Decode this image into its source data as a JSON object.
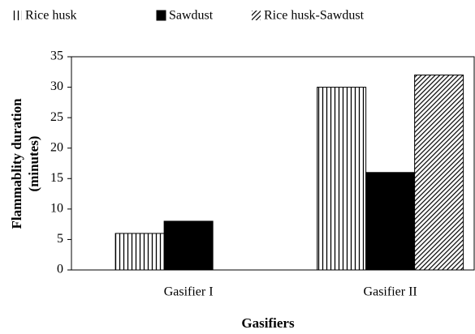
{
  "chart_data": {
    "type": "bar",
    "categories": [
      "Gasifier I",
      "Gasifier II"
    ],
    "series": [
      {
        "name": "Rice husk",
        "color": "#000000",
        "hatch": "vertical",
        "values": [
          6,
          30
        ]
      },
      {
        "name": "Sawdust",
        "color": "#000000",
        "hatch": "solid",
        "values": [
          8,
          16
        ]
      },
      {
        "name": "Rice husk-Sawdust",
        "color": "#000000",
        "hatch": "diagonal",
        "values": [
          0,
          32
        ]
      }
    ],
    "xlabel": "Gasifiers",
    "ylabel": [
      "Flammablity duration",
      "(minutes)"
    ],
    "ylim": [
      0,
      35
    ],
    "yticks": [
      0,
      5,
      10,
      15,
      20,
      25,
      30,
      35
    ],
    "legend": "top"
  }
}
